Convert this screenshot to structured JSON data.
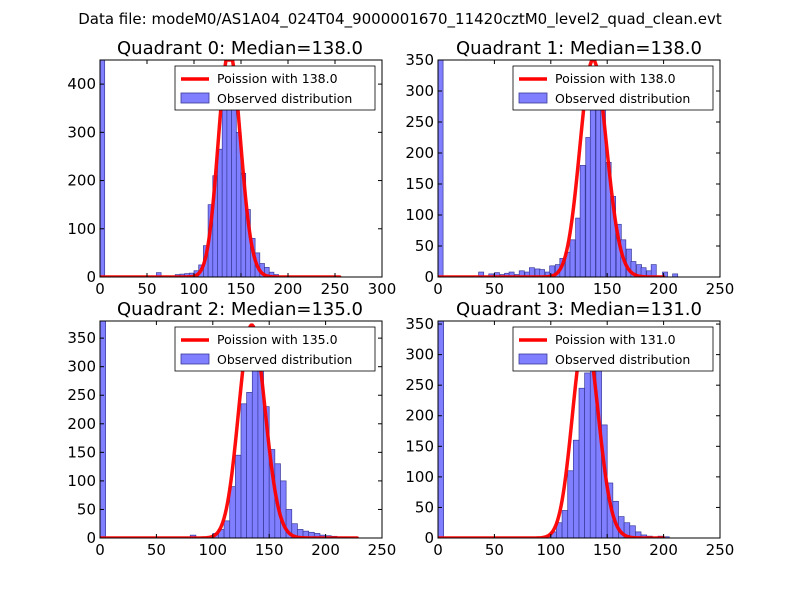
{
  "chart_data": {
    "suptitle": "Data file: modeM0/AS1A04_024T04_9000001670_11420cztM0_level2_quad_clean.evt",
    "legend_line": "Poission with",
    "legend_hist": "Observed distribution",
    "colors": {
      "bar": "#7f7fff",
      "bar_edge": "#3a3a9a",
      "poisson": "#ff0000"
    },
    "panels": [
      {
        "type": "bar",
        "quadrant": 0,
        "title": "Quadrant 0: Median=138.0",
        "median": 138.0,
        "median_label": "138.0",
        "xlim": [
          0,
          300
        ],
        "ylim": [
          0,
          450
        ],
        "xticks": [
          0,
          50,
          100,
          150,
          200,
          250,
          300
        ],
        "yticks": [
          0,
          100,
          200,
          300,
          400
        ],
        "bin_width": 5,
        "bins": [
          [
            0,
            450
          ],
          [
            60,
            9
          ],
          [
            80,
            5
          ],
          [
            85,
            6
          ],
          [
            90,
            7
          ],
          [
            95,
            8
          ],
          [
            100,
            13
          ],
          [
            105,
            25
          ],
          [
            110,
            65
          ],
          [
            115,
            150
          ],
          [
            120,
            210
          ],
          [
            125,
            265
          ],
          [
            130,
            355
          ],
          [
            135,
            435
          ],
          [
            140,
            365
          ],
          [
            145,
            300
          ],
          [
            150,
            215
          ],
          [
            155,
            140
          ],
          [
            160,
            80
          ],
          [
            165,
            50
          ],
          [
            170,
            28
          ],
          [
            175,
            20
          ],
          [
            180,
            10
          ],
          [
            185,
            5
          ]
        ],
        "poisson_x": [
          0,
          255
        ]
      },
      {
        "type": "bar",
        "quadrant": 1,
        "title": "Quadrant 1: Median=138.0",
        "median": 138.0,
        "median_label": "138.0",
        "xlim": [
          0,
          250
        ],
        "ylim": [
          0,
          350
        ],
        "xticks": [
          0,
          50,
          100,
          150,
          200,
          250
        ],
        "yticks": [
          0,
          50,
          100,
          150,
          200,
          250,
          300,
          350
        ],
        "bin_width": 4.5,
        "bins": [
          [
            0,
            350
          ],
          [
            36,
            8
          ],
          [
            45,
            5
          ],
          [
            50,
            7
          ],
          [
            55,
            4
          ],
          [
            59,
            6
          ],
          [
            63,
            8
          ],
          [
            68,
            4
          ],
          [
            72,
            10
          ],
          [
            77,
            8
          ],
          [
            81,
            15
          ],
          [
            86,
            13
          ],
          [
            90,
            12
          ],
          [
            95,
            8
          ],
          [
            99,
            18
          ],
          [
            104,
            20
          ],
          [
            108,
            30
          ],
          [
            113,
            40
          ],
          [
            117,
            60
          ],
          [
            122,
            95
          ],
          [
            126,
            180
          ],
          [
            131,
            225
          ],
          [
            135,
            285
          ],
          [
            140,
            330
          ],
          [
            144,
            295
          ],
          [
            149,
            185
          ],
          [
            153,
            130
          ],
          [
            158,
            85
          ],
          [
            162,
            60
          ],
          [
            167,
            45
          ],
          [
            171,
            25
          ],
          [
            176,
            20
          ],
          [
            180,
            15
          ],
          [
            185,
            10
          ],
          [
            189,
            20
          ],
          [
            199,
            8
          ],
          [
            208,
            5
          ]
        ],
        "poisson_x": [
          0,
          200
        ]
      },
      {
        "type": "bar",
        "quadrant": 2,
        "title": "Quadrant 2: Median=135.0",
        "median": 135.0,
        "median_label": "135.0",
        "xlim": [
          0,
          250
        ],
        "ylim": [
          0,
          380
        ],
        "xticks": [
          0,
          50,
          100,
          150,
          200,
          250
        ],
        "yticks": [
          0,
          50,
          100,
          150,
          200,
          250,
          300,
          350
        ],
        "bin_width": 5,
        "bins": [
          [
            0,
            380
          ],
          [
            80,
            5
          ],
          [
            100,
            8
          ],
          [
            105,
            15
          ],
          [
            110,
            30
          ],
          [
            115,
            90
          ],
          [
            120,
            145
          ],
          [
            125,
            235
          ],
          [
            130,
            255
          ],
          [
            135,
            345
          ],
          [
            140,
            295
          ],
          [
            145,
            230
          ],
          [
            150,
            155
          ],
          [
            155,
            130
          ],
          [
            160,
            100
          ],
          [
            165,
            50
          ],
          [
            170,
            25
          ],
          [
            175,
            15
          ],
          [
            180,
            12
          ],
          [
            185,
            10
          ],
          [
            190,
            8
          ],
          [
            195,
            5
          ],
          [
            200,
            4
          ],
          [
            205,
            3
          ],
          [
            210,
            2
          ],
          [
            215,
            1
          ]
        ],
        "poisson_x": [
          0,
          228
        ]
      },
      {
        "type": "bar",
        "quadrant": 3,
        "title": "Quadrant 3: Median=131.0",
        "median": 131.0,
        "median_label": "131.0",
        "xlim": [
          0,
          250
        ],
        "ylim": [
          0,
          355
        ],
        "xticks": [
          0,
          50,
          100,
          150,
          200,
          250
        ],
        "yticks": [
          0,
          50,
          100,
          150,
          200,
          250,
          300,
          350
        ],
        "bin_width": 5,
        "bins": [
          [
            0,
            355
          ],
          [
            95,
            3
          ],
          [
            100,
            10
          ],
          [
            105,
            25
          ],
          [
            110,
            45
          ],
          [
            115,
            110
          ],
          [
            120,
            160
          ],
          [
            125,
            245
          ],
          [
            130,
            270
          ],
          [
            135,
            310
          ],
          [
            140,
            300
          ],
          [
            145,
            185
          ],
          [
            150,
            90
          ],
          [
            155,
            60
          ],
          [
            160,
            35
          ],
          [
            165,
            25
          ],
          [
            170,
            20
          ],
          [
            175,
            10
          ],
          [
            180,
            5
          ],
          [
            185,
            3
          ],
          [
            195,
            3
          ],
          [
            200,
            2
          ]
        ],
        "poisson_x": [
          0,
          200
        ]
      }
    ]
  }
}
